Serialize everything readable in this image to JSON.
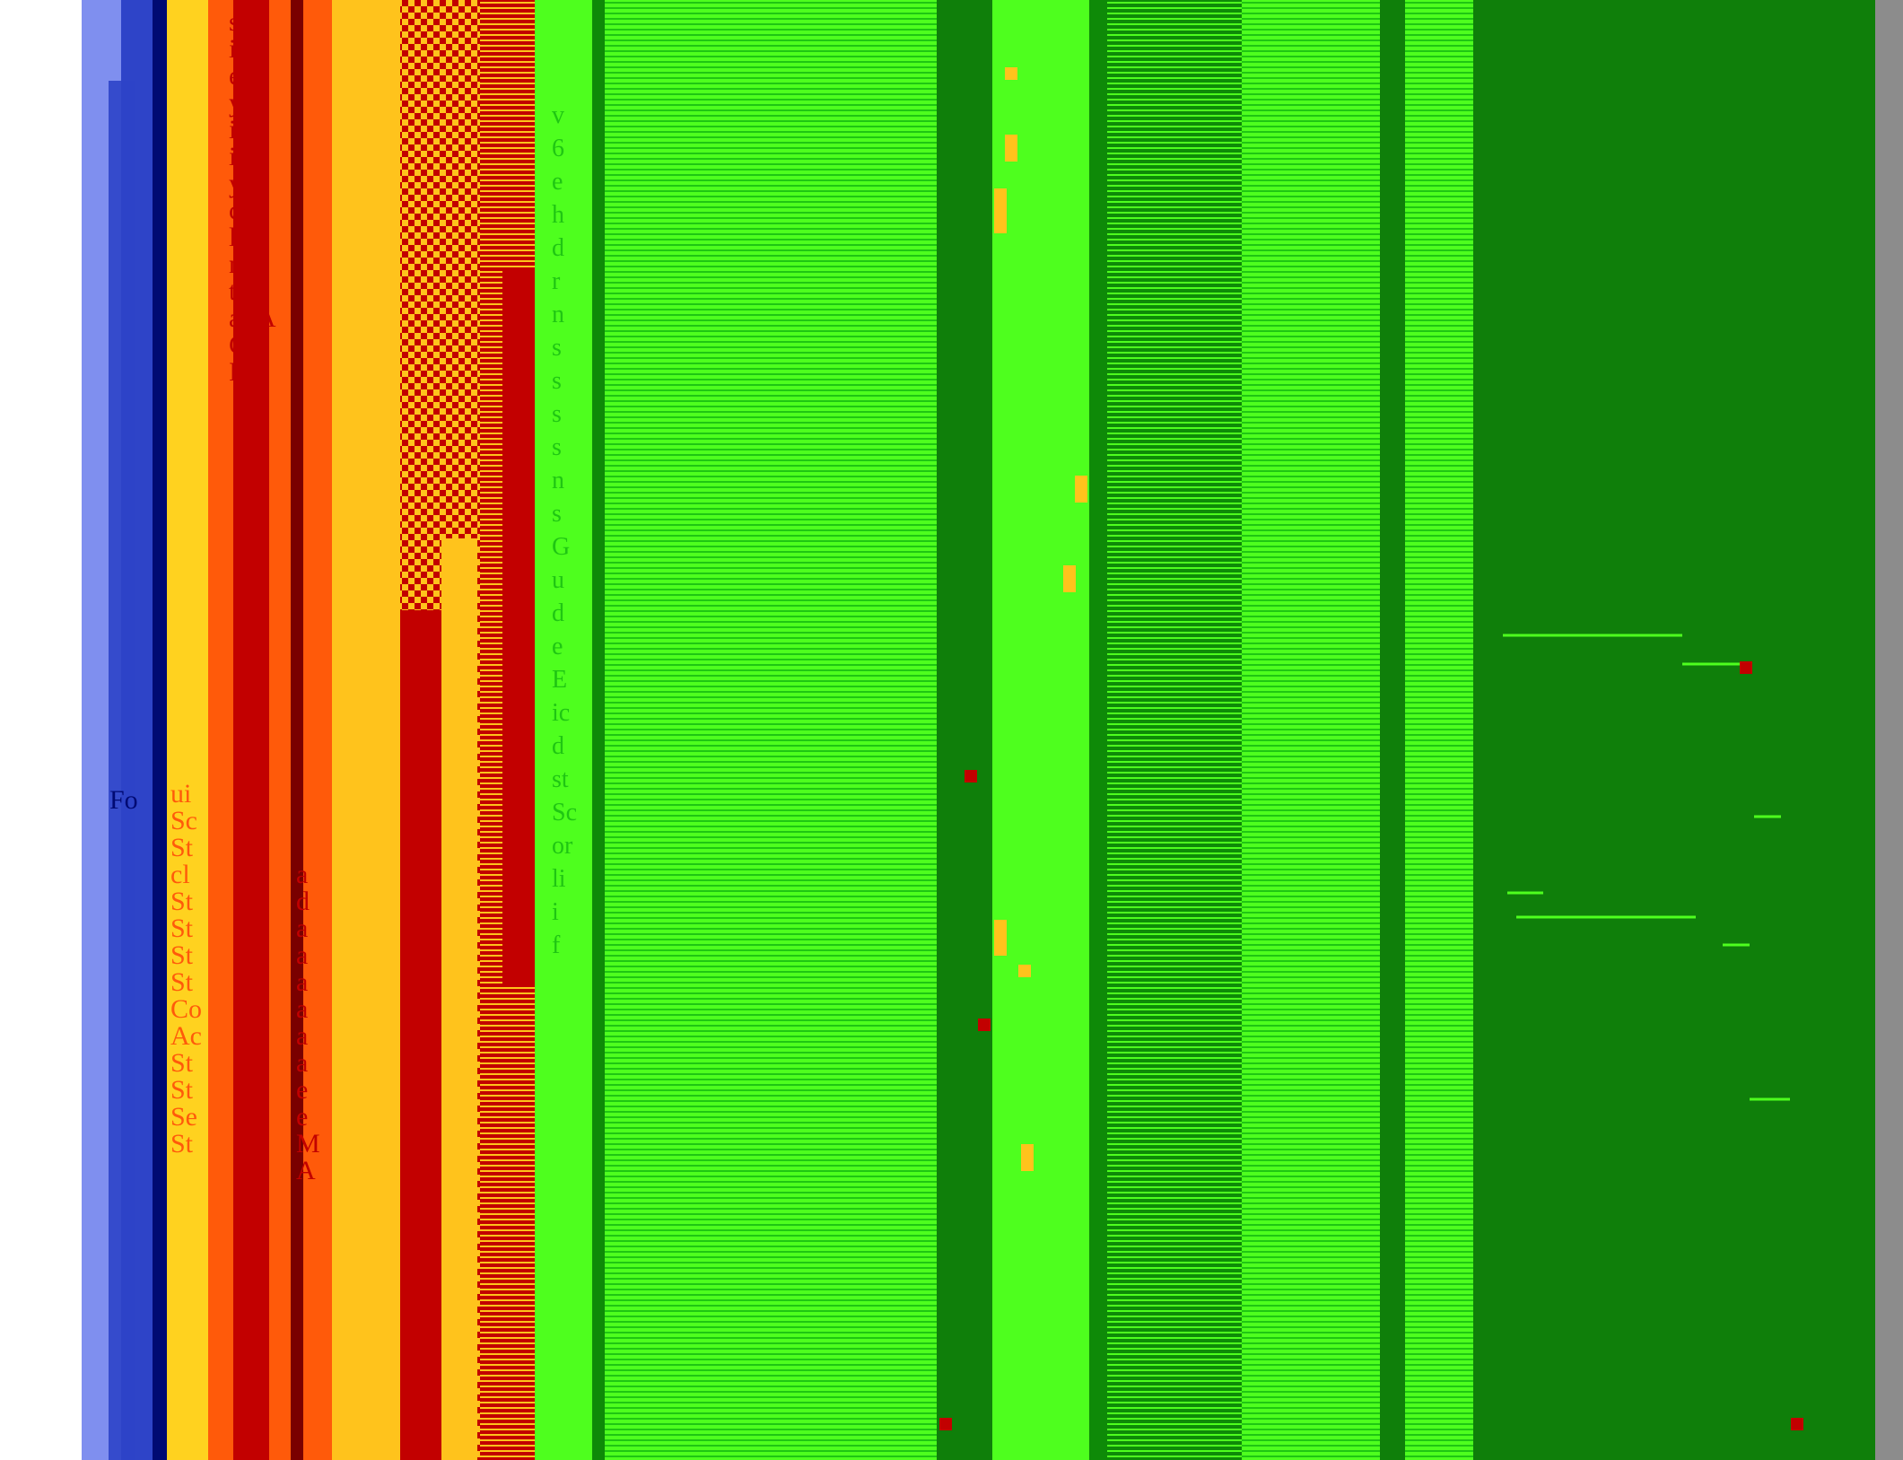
{
  "palette": {
    "white": "#ffffff",
    "periwinkle": "#7f8fef",
    "blue": "#2e44c8",
    "navy": "#000a73",
    "yellow": "#ffd21f",
    "gold": "#ffc31c",
    "orange": "#ff5a0a",
    "red": "#c20000",
    "dark_red": "#7a0000",
    "mid_red": "#b31010",
    "lime": "#4eff1e",
    "green": "#1fc613",
    "dark_green": "#0e8a08",
    "forest": "#0f7f0a",
    "gray": "#8c8c8c"
  },
  "visible_text": {
    "left_caption": "Fo",
    "orange_column_fragments": [
      "s A",
      "ie",
      "er",
      "y",
      "ic",
      "ic",
      "y",
      "ce",
      "lo",
      "nts",
      "ta",
      "as A",
      "GP",
      "In"
    ],
    "lower_orange_fragments": [
      "ui",
      "Sc",
      "St",
      "cl",
      "St",
      "St",
      "St",
      "St",
      "Co",
      "Ac",
      "St",
      "St",
      "Se",
      "St"
    ],
    "red_column_fragments": [
      "a",
      "d",
      "a",
      "a",
      "a",
      "a",
      "a",
      "a",
      "e",
      "e",
      "M",
      "A"
    ],
    "green_column_fragments": [
      "v",
      "6",
      "e",
      "h",
      "d",
      "r",
      "n",
      "s",
      "s",
      "s",
      "s",
      "n",
      "s",
      "G",
      "u",
      "d",
      "e",
      "E",
      "ic",
      "d",
      "st",
      "Sc",
      "or",
      "li",
      "i",
      "f"
    ]
  }
}
